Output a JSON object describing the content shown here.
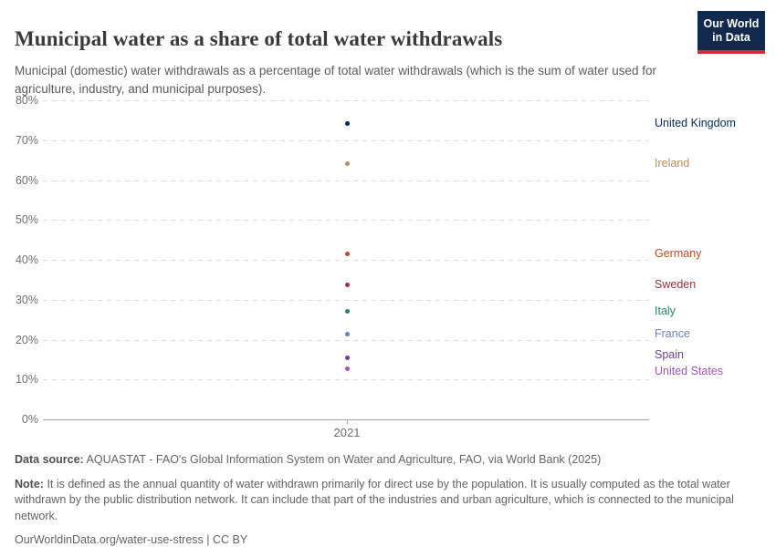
{
  "header": {
    "title": "Municipal water as a share of total water withdrawals",
    "subtitle": "Municipal (domestic) water withdrawals as a percentage of total water withdrawals (which is the sum of water used for agriculture, industry, and municipal purposes).",
    "logo": {
      "line1": "Our World",
      "line2": "in Data"
    }
  },
  "chart_data": {
    "type": "scatter",
    "title": "Municipal water as a share of total water withdrawals",
    "x": [
      2021
    ],
    "x_tick_label": "2021",
    "ylabel": "",
    "xlabel": "",
    "ylim": [
      0,
      80
    ],
    "ytick_step": 10,
    "ytick_suffix": "%",
    "grid": "horizontal-dashed",
    "legend_position": "labels-right-of-points",
    "series": [
      {
        "name": "United Kingdom",
        "x": 2021,
        "value": 74.1,
        "color": "#00295B",
        "label_dy": 0
      },
      {
        "name": "Ireland",
        "x": 2021,
        "value": 64.1,
        "color": "#BC8E5A",
        "label_dy": 0
      },
      {
        "name": "Germany",
        "x": 2021,
        "value": 41.4,
        "color": "#BE4B23",
        "label_dy": 0
      },
      {
        "name": "Sweden",
        "x": 2021,
        "value": 33.7,
        "color": "#A12D45",
        "label_dy": 0
      },
      {
        "name": "Italy",
        "x": 2021,
        "value": 27.0,
        "color": "#2C8465",
        "label_dy": 0
      },
      {
        "name": "France",
        "x": 2021,
        "value": 21.3,
        "color": "#6B80BE",
        "label_dy": 0
      },
      {
        "name": "Spain",
        "x": 2021,
        "value": 15.4,
        "color": "#6D3E91",
        "label_dy": -3
      },
      {
        "name": "United States",
        "x": 2021,
        "value": 12.7,
        "color": "#A652BA",
        "label_dy": 3
      }
    ]
  },
  "footer": {
    "data_source_label": "Data source:",
    "data_source_text": "AQUASTAT - FAO's Global Information System on Water and Agriculture, FAO, via World Bank (2025)",
    "note_label": "Note:",
    "note_text": "It is defined as the annual quantity of water withdrawn primarily for direct use by the population. It is usually computed as the total water withdrawn by the public distribution network. It can include that part of the industries and urban agriculture, which is connected to the municipal network.",
    "url_text": "OurWorldinData.org/water-use-stress | CC BY"
  },
  "colors": {
    "logo_bg": "#12294E",
    "logo_bar": "#CF3039",
    "grid": "#DDDDDD",
    "axis": "#A3A3A3",
    "title_text": "#3A3A3A",
    "subtitle_text": "#5B5B5B",
    "tick_text": "#6E6E6E",
    "footer_text": "#636363"
  }
}
